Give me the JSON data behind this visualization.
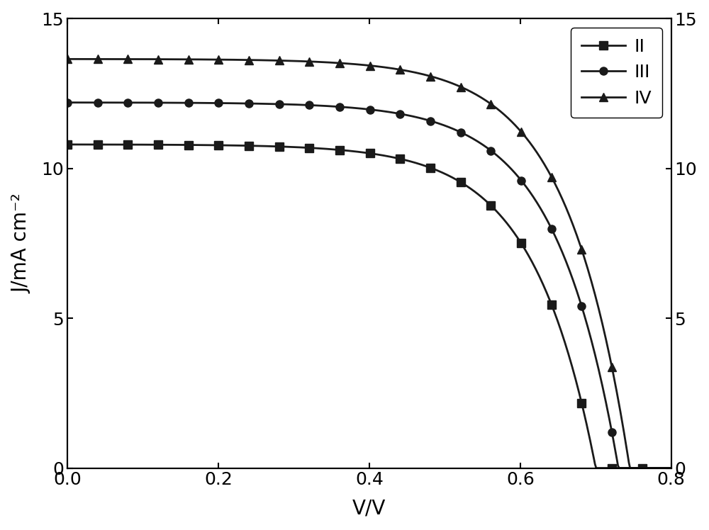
{
  "title": "",
  "xlabel": "V/V",
  "ylabel": "J/mA cm⁻²",
  "xlim": [
    0.0,
    0.8
  ],
  "ylim": [
    0.0,
    15.0
  ],
  "xticks": [
    0.0,
    0.2,
    0.4,
    0.6,
    0.8
  ],
  "yticks": [
    0,
    5,
    10,
    15
  ],
  "series": [
    {
      "label": "II",
      "marker": "s",
      "color": "#1a1a1a",
      "Jsc": 10.8,
      "Voc": 0.7,
      "n": 12.0
    },
    {
      "label": "III",
      "marker": "o",
      "color": "#1a1a1a",
      "Jsc": 12.2,
      "Voc": 0.73,
      "n": 12.0
    },
    {
      "label": "IV",
      "marker": "^",
      "color": "#1a1a1a",
      "Jsc": 13.65,
      "Voc": 0.745,
      "n": 12.0
    }
  ],
  "background_color": "#ffffff",
  "tick_fontsize": 18,
  "label_fontsize": 20,
  "legend_fontsize": 18,
  "linewidth": 2.0,
  "markersize": 8
}
